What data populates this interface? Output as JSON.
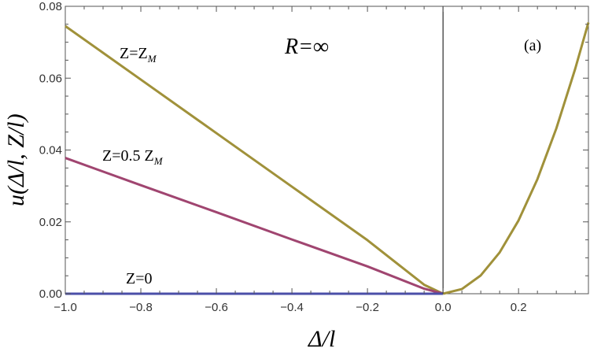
{
  "chart_data": {
    "type": "line",
    "title": "",
    "xlabel": "Δ/l",
    "ylabel": "u(Δ/l, Z/l)",
    "xlim": [
      -1.0,
      0.385
    ],
    "ylim": [
      0.0,
      0.08
    ],
    "x_ticks": [
      "−1.0",
      "−0.8",
      "−0.6",
      "−0.4",
      "−0.2",
      "0.0",
      "0.2"
    ],
    "y_ticks": [
      "0.00",
      "0.02",
      "0.04",
      "0.06",
      "0.08"
    ],
    "grid": false,
    "panel_label": "(a)",
    "annotations": {
      "r_label": "R=∞",
      "z_max": "Z=Z",
      "z_max_sub": "M",
      "z_half": "Z=0.5 Z",
      "z_half_sub": "M",
      "z_zero": "Z=0"
    },
    "series": [
      {
        "color": "#A0913A",
        "x": [
          -1.0,
          -0.8,
          -0.6,
          -0.4,
          -0.2,
          -0.05,
          0.0
        ],
        "y": [
          0.0745,
          0.0596,
          0.0447,
          0.0298,
          0.0149,
          0.0025,
          0.0
        ]
      },
      {
        "color": "#A04570",
        "x": [
          -1.0,
          -0.8,
          -0.6,
          -0.4,
          -0.2,
          -0.05,
          0.0
        ],
        "y": [
          0.0378,
          0.0302,
          0.0227,
          0.0151,
          0.0076,
          0.0014,
          0.0
        ]
      },
      {
        "color": "#4B4FA8",
        "x": [
          -1.0,
          0.0
        ],
        "y": [
          0.0,
          0.0
        ]
      },
      {
        "color": "#A0913A",
        "x": [
          0.0,
          0.05,
          0.1,
          0.15,
          0.2,
          0.25,
          0.3,
          0.35,
          0.385
        ],
        "y": [
          0.0,
          0.0013,
          0.0051,
          0.0115,
          0.0204,
          0.0319,
          0.046,
          0.0626,
          0.0755
        ]
      }
    ]
  }
}
